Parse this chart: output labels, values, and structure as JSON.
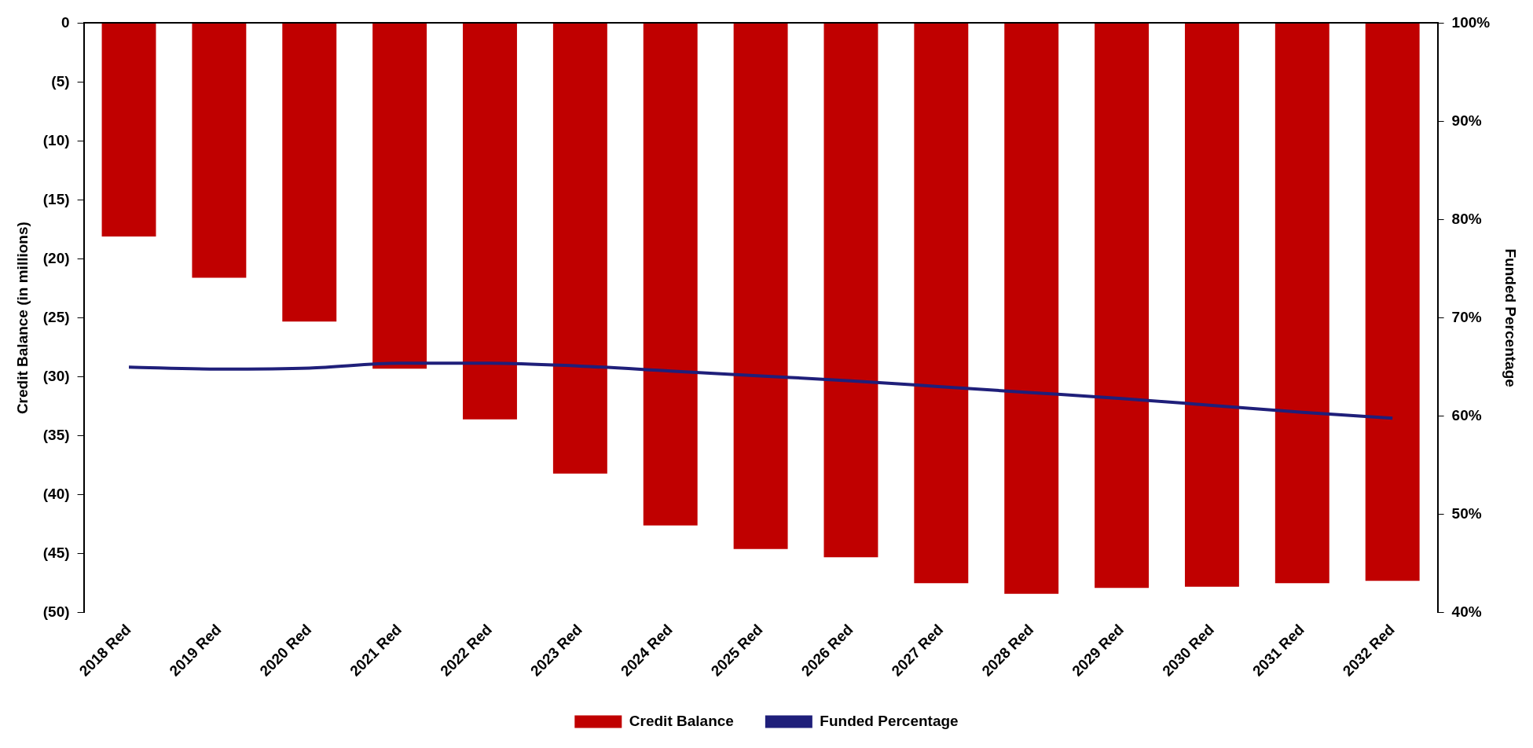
{
  "chart_data": {
    "type": "bar",
    "categories": [
      "2018 Red",
      "2019 Red",
      "2020 Red",
      "2021 Red",
      "2022 Red",
      "2023 Red",
      "2024 Red",
      "2025 Red",
      "2026 Red",
      "2027 Red",
      "2028 Red",
      "2029 Red",
      "2030 Red",
      "2031 Red",
      "2032 Red"
    ],
    "series": [
      {
        "name": "Credit Balance",
        "color": "#c00000",
        "values": [
          -18.1,
          -21.6,
          -25.3,
          -29.3,
          -33.6,
          -38.2,
          -42.6,
          -44.6,
          -45.3,
          -47.5,
          -48.4,
          -47.9,
          -47.8,
          -47.5,
          -47.3
        ]
      },
      {
        "name": "Funded Percentage",
        "type": "line",
        "axis": "y2",
        "color": "#1f1f7a",
        "values": [
          65.0,
          64.8,
          64.9,
          65.4,
          65.4,
          65.1,
          64.6,
          64.1,
          63.6,
          63.0,
          62.4,
          61.8,
          61.1,
          60.4,
          59.8
        ]
      }
    ],
    "ylabel": "Credit Balance (in millions)",
    "y2label": "Funded Percentage",
    "ylim": [
      -50,
      0
    ],
    "yticks": [
      {
        "value": -50,
        "label": "(50)"
      },
      {
        "value": -45,
        "label": "(45)"
      },
      {
        "value": -40,
        "label": "(40)"
      },
      {
        "value": -35,
        "label": "(35)"
      },
      {
        "value": -30,
        "label": "(30)"
      },
      {
        "value": -25,
        "label": "(25)"
      },
      {
        "value": -20,
        "label": "(20)"
      },
      {
        "value": -15,
        "label": "(15)"
      },
      {
        "value": -10,
        "label": "(10)"
      },
      {
        "value": -5,
        "label": "(5)"
      },
      0
    ],
    "y2lim": [
      40,
      100
    ],
    "y2ticks": [
      {
        "value": 40,
        "label": "40%"
      },
      {
        "value": 50,
        "label": "50%"
      },
      {
        "value": 60,
        "label": "60%"
      },
      {
        "value": 70,
        "label": "70%"
      },
      {
        "value": 80,
        "label": "80%"
      },
      {
        "value": 90,
        "label": "90%"
      },
      {
        "value": 100,
        "label": "100%"
      }
    ],
    "legend": "bottom",
    "grid": false,
    "marker": "none"
  }
}
